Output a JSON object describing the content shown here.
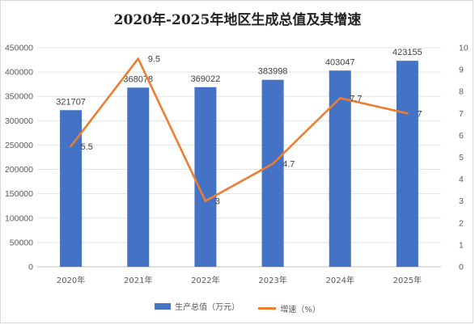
{
  "chart_data": {
    "type": "bar",
    "title": "2020年-2025年地区生成总值及其增速",
    "categories": [
      "2020年",
      "2021年",
      "2022年",
      "2023年",
      "2024年",
      "2025年"
    ],
    "series": [
      {
        "name": "生产总值（万元）",
        "type": "bar",
        "axis": "left",
        "values": [
          321707,
          368078,
          369022,
          383998,
          403047,
          423155
        ],
        "labels": [
          "321707",
          "368078",
          "369022",
          "383998",
          "403047",
          "423155"
        ],
        "color": "#4472C4"
      },
      {
        "name": "增速（%）",
        "type": "line",
        "axis": "right",
        "values": [
          5.5,
          9.5,
          3,
          4.7,
          7.7,
          7
        ],
        "labels": [
          "5.5",
          "9.5",
          "3",
          "4.7",
          "7.7",
          "7"
        ],
        "color": "#ED7D31"
      }
    ],
    "left_axis": {
      "range": [
        0,
        450000
      ],
      "ticks": [
        "0",
        "50000",
        "100000",
        "150000",
        "200000",
        "250000",
        "300000",
        "350000",
        "400000",
        "450000"
      ]
    },
    "right_axis": {
      "range": [
        0,
        10
      ],
      "ticks": [
        "0",
        "1",
        "2",
        "3",
        "4",
        "5",
        "6",
        "7",
        "8",
        "9",
        "10"
      ]
    },
    "grid": true,
    "legend_position": "bottom"
  }
}
